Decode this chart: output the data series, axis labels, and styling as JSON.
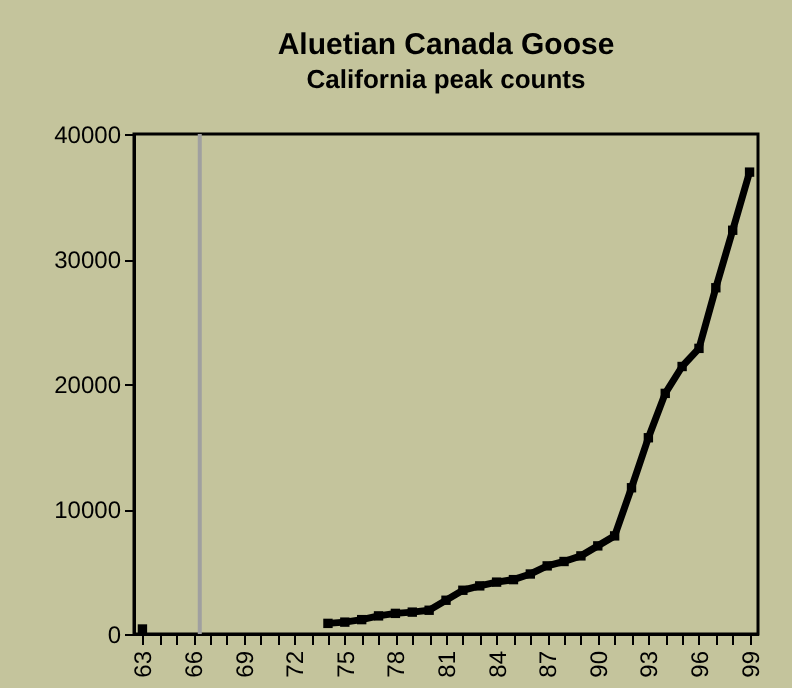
{
  "chart_data": {
    "type": "line",
    "title": "Aluetian Canada Goose",
    "subtitle": "California peak counts",
    "x": [
      63,
      64,
      65,
      66,
      67,
      68,
      69,
      70,
      71,
      72,
      73,
      74,
      75,
      76,
      77,
      78,
      79,
      80,
      81,
      82,
      83,
      84,
      85,
      86,
      87,
      88,
      89,
      90,
      91,
      92,
      93,
      94,
      95,
      96,
      97,
      98,
      99
    ],
    "series": [
      {
        "color": "#000000",
        "values": [
          400,
          null,
          null,
          null,
          null,
          null,
          null,
          null,
          null,
          null,
          null,
          850,
          950,
          1150,
          1450,
          1650,
          1750,
          1900,
          2700,
          3500,
          3850,
          4150,
          4350,
          4800,
          5450,
          5800,
          6250,
          7050,
          7850,
          11700,
          15700,
          19250,
          21400,
          22850,
          27700,
          32300,
          36950
        ]
      }
    ],
    "marker": "square",
    "xlim": [
      62.5,
      99.5
    ],
    "xticks": [
      63,
      {
        "value": 64,
        "label": null
      },
      {
        "value": 65,
        "label": null
      },
      66,
      {
        "value": 67,
        "label": null
      },
      {
        "value": 68,
        "label": null
      },
      69,
      {
        "value": 70,
        "label": null
      },
      {
        "value": 71,
        "label": null
      },
      72,
      {
        "value": 73,
        "label": null
      },
      {
        "value": 74,
        "label": null
      },
      75,
      {
        "value": 76,
        "label": null
      },
      {
        "value": 77,
        "label": null
      },
      78,
      {
        "value": 79,
        "label": null
      },
      {
        "value": 80,
        "label": null
      },
      81,
      {
        "value": 82,
        "label": null
      },
      {
        "value": 83,
        "label": null
      },
      84,
      {
        "value": 85,
        "label": null
      },
      {
        "value": 86,
        "label": null
      },
      87,
      {
        "value": 88,
        "label": null
      },
      {
        "value": 89,
        "label": null
      },
      90,
      {
        "value": 91,
        "label": null
      },
      {
        "value": 92,
        "label": null
      },
      93,
      {
        "value": 94,
        "label": null
      },
      {
        "value": 95,
        "label": null
      },
      96,
      {
        "value": 97,
        "label": null
      },
      {
        "value": 98,
        "label": null
      },
      99
    ],
    "ylim": [
      0,
      40000
    ],
    "yticks": [
      0,
      10000,
      20000,
      30000,
      40000
    ],
    "ref_lines": [
      {
        "axis": "x",
        "value": 66.4,
        "color": "#a0a0a0"
      }
    ],
    "grid": false
  }
}
